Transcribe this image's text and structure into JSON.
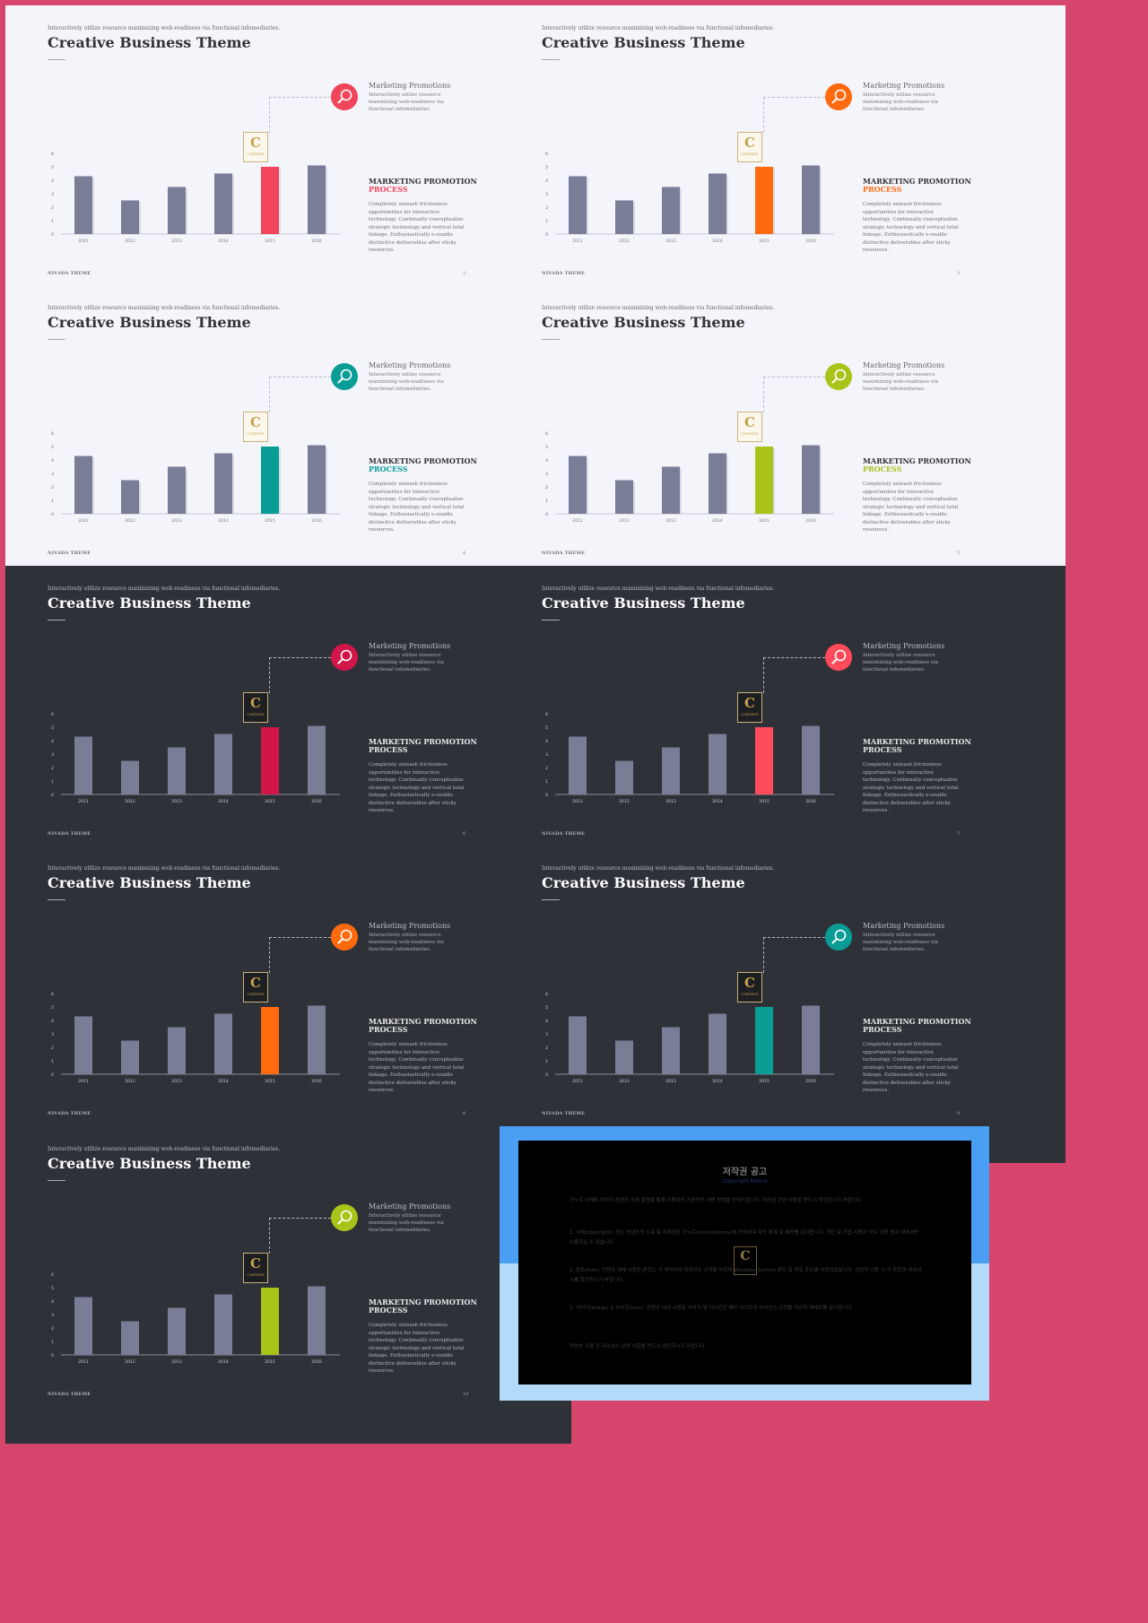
{
  "common": {
    "kicker": "Interactively utilize resource maximizing web-readiness via functional infomediaries.",
    "title": "Creative Business Theme",
    "footer": "NIVADA THEME",
    "promo_title": "Marketing Promotions",
    "promo_desc": "Interactively utilize resource maximizing web-readiness via functional infomediaries.",
    "mp_title": "MARKETING PROMOTION",
    "mp_process": "PROCESS",
    "mp_desc": "Completely unleash frictionless opportunities for interactive technology. Continually conceptualize strategic technology and vertical total linkage. Enthusiastically e-enable distinctive deliverables after sticky resources.",
    "logo_letter": "C",
    "logo_text": "CONTENTS"
  },
  "slides": [
    {
      "theme": "light",
      "accent": "#f0455b",
      "page": "2"
    },
    {
      "theme": "light",
      "accent": "#ff6a0e",
      "page": "3"
    },
    {
      "theme": "light",
      "accent": "#0a9d96",
      "page": "4"
    },
    {
      "theme": "light",
      "accent": "#a9c318",
      "page": "5"
    },
    {
      "theme": "dark",
      "accent": "#d2164a",
      "page": "6"
    },
    {
      "theme": "dark",
      "accent": "#ff4b5b",
      "page": "7"
    },
    {
      "theme": "dark",
      "accent": "#ff6a0e",
      "page": "8"
    },
    {
      "theme": "dark",
      "accent": "#0a9d96",
      "page": "9"
    },
    {
      "theme": "dark",
      "accent": "#a9c318",
      "page": "10"
    }
  ],
  "chart_data": {
    "type": "bar",
    "categories": [
      "2011",
      "2012",
      "2013",
      "2014",
      "2015",
      "2016"
    ],
    "values": [
      4.3,
      2.5,
      3.5,
      4.5,
      5.0,
      5.1
    ],
    "highlight_index": 4,
    "yticks": [
      0,
      1,
      2,
      3,
      4,
      5,
      6
    ],
    "ylim": [
      0,
      6
    ],
    "title": "",
    "xlabel": "",
    "ylabel": "",
    "bar_color": "#7a7d96"
  },
  "copyright": {
    "title": "저작권 공고",
    "subtitle": "Copyright Notice",
    "paragraphs": [
      "굿노트 서체와 이미지 컨텐츠 상세 설명을 통해 이용자의 기본적인 사용 방법을 안내드립니다. 저작권 관련 내용을 반드시 확인하시기 바랍니다.",
      "1. 서체(copyright): 모든 컨텐츠의 소유 및 저작권은 굿노트(contentsmoa)에 귀속되며 무단 복제 및 배포를 금지합니다. 개인 및 기업 사용자 모두 이용 범위 내에서만 사용하실 수 있습니다.",
      "2. 폰트(font): 컨텐츠 내에 사용된 폰트는 각 제작사의 라이선스 규정을 따르며 Windows System 폰트 및 무료 폰트를 사용하였습니다. 상업적 이용 시 각 폰트의 라이선스를 확인하시기 바랍니다.",
      "3. 이미지(image) & 아이콘(icon): 컨텐츠 내에 사용된 이미지 및 아이콘은 해당 사이트의 라이선스 규정을 따르며 재배포를 금지합니다.",
      "컨텐츠 사용 전 라이선스 관련 사항을 반드시 확인하시기 바랍니다."
    ]
  }
}
